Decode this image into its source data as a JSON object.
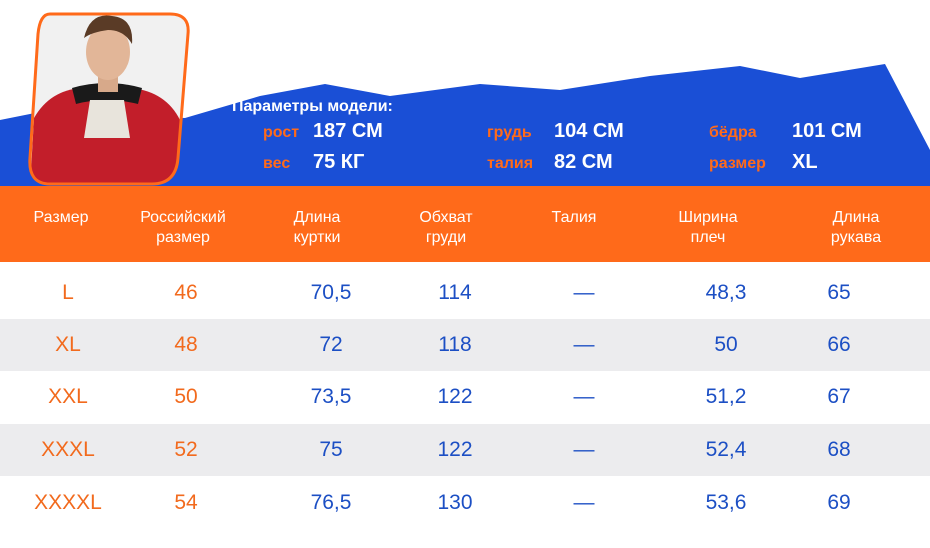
{
  "model": {
    "title": "Параметры модели:",
    "params": [
      {
        "label": "рост",
        "value": "187 СМ"
      },
      {
        "label": "вес",
        "value": "75 КГ"
      },
      {
        "label": "грудь",
        "value": "104 СМ"
      },
      {
        "label": "талия",
        "value": "82 СМ"
      },
      {
        "label": "бёдра",
        "value": "101 СМ"
      },
      {
        "label": "размер",
        "value": "XL"
      }
    ]
  },
  "colors": {
    "accent": "#ff6a1a",
    "blue": "#1c4fc4",
    "band_blue": "#1a4fd6"
  },
  "table": {
    "headers": [
      "Размер",
      "Российский\nразмер",
      "Длина\nкуртки",
      "Обхват\nгруди",
      "Талия",
      "Ширина\nплеч",
      "Длина\nрукава"
    ],
    "rows": [
      [
        "L",
        "46",
        "70,5",
        "114",
        "—",
        "48,3",
        "65"
      ],
      [
        "XL",
        "48",
        "72",
        "118",
        "—",
        "50",
        "66"
      ],
      [
        "XXL",
        "50",
        "73,5",
        "122",
        "—",
        "51,2",
        "67"
      ],
      [
        "XXXL",
        "52",
        "75",
        "122",
        "—",
        "52,4",
        "68"
      ],
      [
        "XXXXL",
        "54",
        "76,5",
        "130",
        "—",
        "53,6",
        "69"
      ]
    ]
  }
}
